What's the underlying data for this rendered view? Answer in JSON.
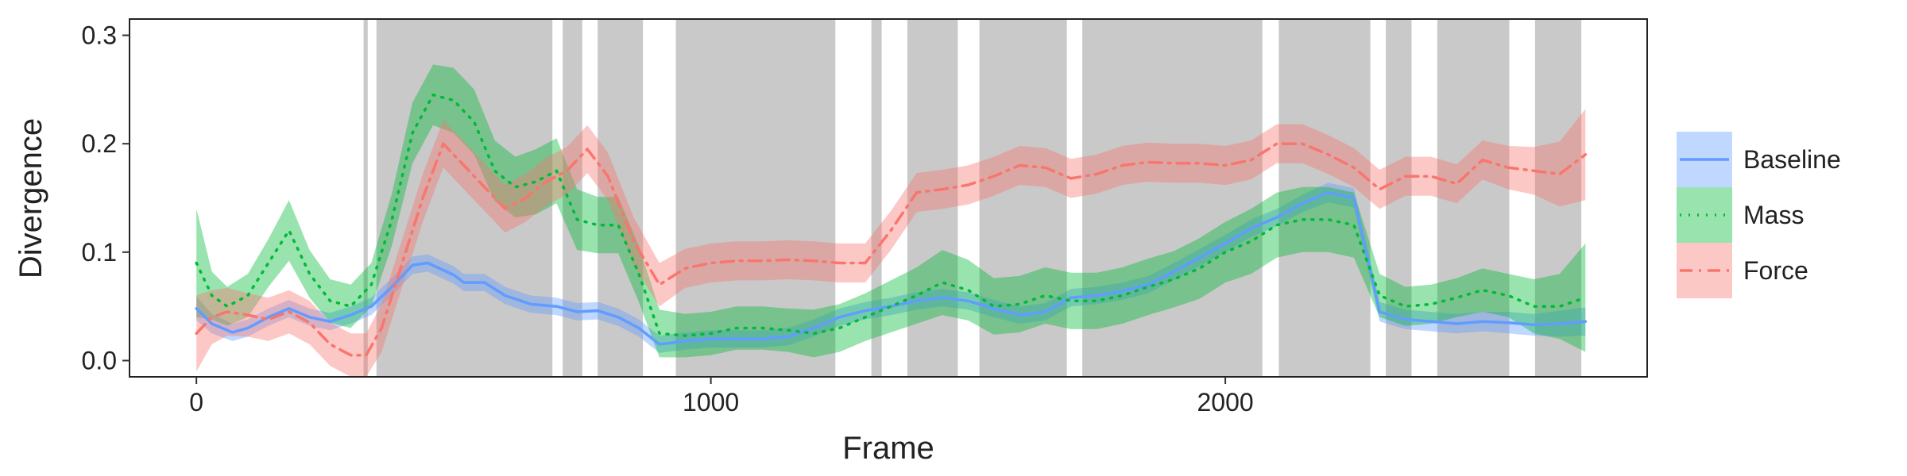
{
  "chart_data": {
    "type": "line",
    "title": "",
    "xlabel": "Frame",
    "ylabel": "Divergence",
    "xlim": [
      -130,
      2820
    ],
    "ylim": [
      -0.015,
      0.315
    ],
    "x_ticks": [
      0,
      1000,
      2000
    ],
    "x_tick_labels": [
      "0",
      "1000",
      "2000"
    ],
    "y_ticks": [
      0.0,
      0.1,
      0.2,
      0.3
    ],
    "y_tick_labels": [
      "0.0",
      "0.1",
      "0.2",
      "0.3"
    ],
    "grid": false,
    "legend_position": "right",
    "shaded_intervals": [
      [
        325,
        333
      ],
      [
        350,
        692
      ],
      [
        712,
        750
      ],
      [
        780,
        868
      ],
      [
        932,
        1242
      ],
      [
        1312,
        1332
      ],
      [
        1382,
        1480
      ],
      [
        1522,
        1692
      ],
      [
        1722,
        2072
      ],
      [
        2104,
        2282
      ],
      [
        2312,
        2362
      ],
      [
        2412,
        2552
      ],
      [
        2602,
        2692
      ]
    ],
    "series": [
      {
        "name": "Baseline",
        "color": "#619CFF",
        "line_style": "solid",
        "x": [
          0,
          30,
          70,
          100,
          140,
          180,
          220,
          260,
          300,
          340,
          380,
          420,
          450,
          500,
          520,
          560,
          600,
          650,
          700,
          740,
          780,
          820,
          860,
          900,
          950,
          1000,
          1050,
          1100,
          1150,
          1200,
          1250,
          1300,
          1350,
          1400,
          1450,
          1500,
          1550,
          1600,
          1650,
          1700,
          1750,
          1800,
          1850,
          1900,
          1950,
          2000,
          2050,
          2100,
          2150,
          2200,
          2250,
          2300,
          2350,
          2400,
          2450,
          2500,
          2550,
          2600,
          2650,
          2700
        ],
        "values": [
          0.048,
          0.034,
          0.026,
          0.03,
          0.04,
          0.048,
          0.04,
          0.036,
          0.042,
          0.05,
          0.068,
          0.088,
          0.09,
          0.079,
          0.072,
          0.072,
          0.06,
          0.052,
          0.05,
          0.045,
          0.046,
          0.04,
          0.03,
          0.015,
          0.018,
          0.02,
          0.02,
          0.02,
          0.022,
          0.03,
          0.04,
          0.046,
          0.05,
          0.055,
          0.058,
          0.055,
          0.048,
          0.042,
          0.045,
          0.058,
          0.06,
          0.064,
          0.07,
          0.082,
          0.095,
          0.108,
          0.122,
          0.132,
          0.145,
          0.155,
          0.15,
          0.045,
          0.038,
          0.036,
          0.034,
          0.036,
          0.035,
          0.033,
          0.034,
          0.036
        ],
        "band": [
          0.011,
          0.009,
          0.008,
          0.008,
          0.008,
          0.008,
          0.008,
          0.008,
          0.008,
          0.008,
          0.008,
          0.008,
          0.008,
          0.008,
          0.008,
          0.008,
          0.008,
          0.008,
          0.008,
          0.008,
          0.008,
          0.008,
          0.008,
          0.008,
          0.008,
          0.008,
          0.008,
          0.008,
          0.008,
          0.008,
          0.008,
          0.008,
          0.008,
          0.008,
          0.008,
          0.008,
          0.008,
          0.008,
          0.008,
          0.008,
          0.008,
          0.008,
          0.008,
          0.008,
          0.008,
          0.008,
          0.008,
          0.008,
          0.008,
          0.009,
          0.009,
          0.009,
          0.009,
          0.009,
          0.009,
          0.009,
          0.01,
          0.01,
          0.012,
          0.013
        ]
      },
      {
        "name": "Mass",
        "color": "#00BA38",
        "line_style": "dotted",
        "x": [
          0,
          30,
          60,
          100,
          140,
          180,
          220,
          260,
          300,
          340,
          380,
          420,
          460,
          500,
          540,
          580,
          620,
          660,
          700,
          740,
          780,
          820,
          860,
          900,
          950,
          1000,
          1050,
          1100,
          1150,
          1200,
          1250,
          1300,
          1350,
          1400,
          1450,
          1500,
          1550,
          1600,
          1650,
          1700,
          1750,
          1800,
          1850,
          1900,
          1950,
          2000,
          2050,
          2100,
          2150,
          2200,
          2250,
          2300,
          2350,
          2400,
          2450,
          2500,
          2550,
          2600,
          2650,
          2700
        ],
        "values": [
          0.09,
          0.06,
          0.05,
          0.06,
          0.09,
          0.12,
          0.08,
          0.055,
          0.05,
          0.07,
          0.13,
          0.21,
          0.245,
          0.24,
          0.22,
          0.175,
          0.16,
          0.165,
          0.175,
          0.13,
          0.125,
          0.125,
          0.08,
          0.025,
          0.023,
          0.025,
          0.03,
          0.03,
          0.028,
          0.025,
          0.03,
          0.04,
          0.05,
          0.06,
          0.072,
          0.065,
          0.05,
          0.052,
          0.06,
          0.055,
          0.055,
          0.06,
          0.068,
          0.075,
          0.085,
          0.1,
          0.11,
          0.125,
          0.13,
          0.13,
          0.125,
          0.06,
          0.05,
          0.052,
          0.058,
          0.065,
          0.06,
          0.05,
          0.05,
          0.058
        ],
        "band": [
          0.05,
          0.022,
          0.018,
          0.02,
          0.022,
          0.028,
          0.022,
          0.02,
          0.02,
          0.02,
          0.024,
          0.028,
          0.028,
          0.03,
          0.03,
          0.028,
          0.028,
          0.03,
          0.03,
          0.028,
          0.026,
          0.026,
          0.026,
          0.022,
          0.02,
          0.02,
          0.02,
          0.02,
          0.02,
          0.022,
          0.022,
          0.022,
          0.024,
          0.026,
          0.03,
          0.028,
          0.026,
          0.026,
          0.026,
          0.026,
          0.026,
          0.026,
          0.026,
          0.026,
          0.028,
          0.028,
          0.03,
          0.03,
          0.03,
          0.03,
          0.03,
          0.02,
          0.018,
          0.018,
          0.018,
          0.02,
          0.02,
          0.025,
          0.03,
          0.05
        ]
      },
      {
        "name": "Force",
        "color": "#F8766D",
        "line_style": "dashdot",
        "x": [
          0,
          30,
          60,
          100,
          140,
          180,
          220,
          260,
          300,
          330,
          360,
          400,
          440,
          480,
          520,
          560,
          600,
          640,
          680,
          720,
          760,
          800,
          850,
          900,
          950,
          1000,
          1050,
          1100,
          1150,
          1200,
          1250,
          1300,
          1350,
          1400,
          1450,
          1500,
          1550,
          1600,
          1650,
          1700,
          1750,
          1800,
          1850,
          1900,
          1950,
          2000,
          2050,
          2100,
          2150,
          2200,
          2250,
          2300,
          2350,
          2400,
          2450,
          2500,
          2550,
          2600,
          2650,
          2700
        ],
        "values": [
          0.025,
          0.04,
          0.045,
          0.042,
          0.038,
          0.045,
          0.035,
          0.015,
          0.005,
          0.005,
          0.03,
          0.09,
          0.15,
          0.2,
          0.18,
          0.16,
          0.14,
          0.15,
          0.165,
          0.175,
          0.195,
          0.17,
          0.11,
          0.07,
          0.085,
          0.09,
          0.092,
          0.092,
          0.093,
          0.092,
          0.09,
          0.09,
          0.12,
          0.155,
          0.158,
          0.162,
          0.17,
          0.18,
          0.178,
          0.168,
          0.172,
          0.18,
          0.183,
          0.182,
          0.182,
          0.18,
          0.185,
          0.2,
          0.2,
          0.19,
          0.178,
          0.158,
          0.17,
          0.17,
          0.163,
          0.185,
          0.178,
          0.175,
          0.172,
          0.19
        ],
        "band": [
          0.035,
          0.025,
          0.022,
          0.02,
          0.02,
          0.02,
          0.02,
          0.02,
          0.02,
          0.02,
          0.022,
          0.022,
          0.022,
          0.022,
          0.022,
          0.022,
          0.022,
          0.022,
          0.022,
          0.022,
          0.022,
          0.022,
          0.022,
          0.02,
          0.018,
          0.018,
          0.018,
          0.018,
          0.018,
          0.018,
          0.018,
          0.018,
          0.018,
          0.018,
          0.018,
          0.018,
          0.018,
          0.018,
          0.018,
          0.018,
          0.018,
          0.018,
          0.018,
          0.018,
          0.018,
          0.018,
          0.018,
          0.018,
          0.018,
          0.018,
          0.018,
          0.018,
          0.018,
          0.018,
          0.018,
          0.018,
          0.02,
          0.022,
          0.03,
          0.042
        ]
      }
    ]
  }
}
